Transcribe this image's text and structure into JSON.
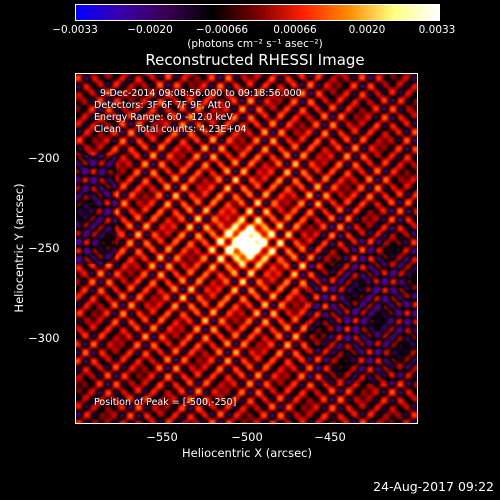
{
  "colorbar": {
    "colors": [
      "#0000ff",
      "#3a00aa",
      "#3a0050",
      "#000000",
      "#7a0000",
      "#ff2000",
      "#ff8a00",
      "#ffff80",
      "#ffffff"
    ],
    "tick_labels": [
      "−0.0033",
      "−0.0020",
      "−0.00066",
      "0.00066",
      "0.0020",
      "0.0033"
    ],
    "units": "(photons cm⁻² s⁻¹ asec⁻²)"
  },
  "image": {
    "title": "Reconstructed RHESSI Image",
    "annotations": {
      "time_range": "9-Dec-2014 09:08:56.000 to 09:18:56.000",
      "detectors": "Detectors: 3F 6F 7F 9F, Att 0",
      "energy": "Energy Range: 6.0 - 12.0 keV",
      "clean": "Clean     Total counts: 4.23E+04"
    },
    "peak": "Position of Peak = [-500,-250]",
    "xlabel": "Heliocentric X (arcsec)",
    "ylabel": "Heliocentric Y (arcsec)",
    "x_ticks": [
      "−550",
      "−500",
      "−450"
    ],
    "y_ticks": [
      "−200",
      "−250",
      "−300"
    ]
  },
  "footer": {
    "date": "24-Aug-2017 09:22"
  }
}
